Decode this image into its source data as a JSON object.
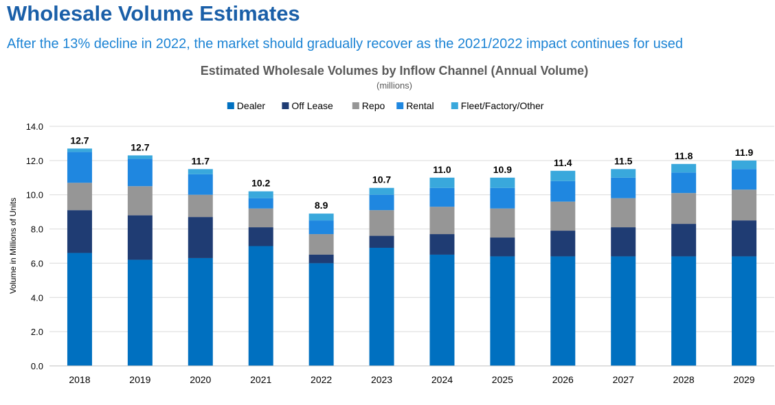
{
  "slide": {
    "title": "Wholesale Volume Estimates",
    "subtitle": "After the 13% decline in 2022, the market should gradually recover as the 2021/2022 impact continues for used"
  },
  "chart_data": {
    "type": "bar",
    "stacked": true,
    "title": "Estimated Wholesale Volumes by Inflow Channel (Annual Volume)",
    "subtitle": "(millions)",
    "xlabel": "",
    "ylabel": "Volume in Millions of Units",
    "ylim": [
      0,
      14
    ],
    "yticks": [
      "0.0",
      "2.0",
      "4.0",
      "6.0",
      "8.0",
      "10.0",
      "12.0",
      "14.0"
    ],
    "grid": true,
    "legend_position": "top",
    "categories": [
      "2018",
      "2019",
      "2020",
      "2021",
      "2022",
      "2023",
      "2024",
      "2025",
      "2026",
      "2027",
      "2028",
      "2029"
    ],
    "totals": [
      "12.7",
      "12.7",
      "11.7",
      "10.2",
      "8.9",
      "10.7",
      "11.0",
      "10.9",
      "11.4",
      "11.5",
      "11.8",
      "11.9"
    ],
    "series": [
      {
        "name": "Dealer",
        "color": "#0070c0",
        "values": [
          6.6,
          6.2,
          6.3,
          7.0,
          6.0,
          6.9,
          6.5,
          6.4,
          6.4,
          6.4,
          6.4,
          6.4
        ]
      },
      {
        "name": "Off Lease",
        "color": "#1f3c73",
        "values": [
          2.5,
          2.6,
          2.4,
          1.1,
          0.5,
          0.7,
          1.2,
          1.1,
          1.5,
          1.7,
          1.9,
          2.1
        ]
      },
      {
        "name": "Repo",
        "color": "#969696",
        "values": [
          1.6,
          1.7,
          1.3,
          1.1,
          1.2,
          1.5,
          1.6,
          1.7,
          1.7,
          1.7,
          1.8,
          1.8
        ]
      },
      {
        "name": "Rental",
        "color": "#1f87e0",
        "values": [
          1.8,
          1.6,
          1.2,
          0.6,
          0.8,
          0.9,
          1.1,
          1.2,
          1.2,
          1.2,
          1.2,
          1.2
        ]
      },
      {
        "name": "Fleet/Factory/Other",
        "color": "#39a8dc",
        "values": [
          0.2,
          0.2,
          0.3,
          0.4,
          0.4,
          0.4,
          0.6,
          0.6,
          0.6,
          0.5,
          0.5,
          0.5
        ]
      }
    ]
  }
}
